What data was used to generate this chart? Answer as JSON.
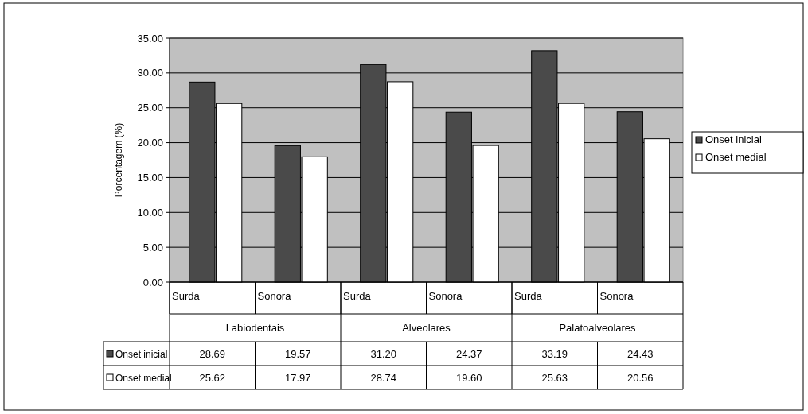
{
  "chart_data": {
    "type": "bar",
    "ylabel": "Porcentagem (%)",
    "categories": [
      "Surda",
      "Sonora",
      "Surda",
      "Sonora",
      "Surda",
      "Sonora"
    ],
    "annotations": [
      "Labiodentais",
      "Alveolares",
      "Palatoalveolares"
    ],
    "series": [
      {
        "name": "Onset inicial",
        "color": "#4a4a4a",
        "values": [
          28.69,
          19.57,
          31.2,
          24.37,
          33.19,
          24.43
        ],
        "value_labels": [
          "28.69",
          "19.57",
          "31.20",
          "24.37",
          "33.19",
          "24.43"
        ]
      },
      {
        "name": "Onset medial",
        "color": "#ffffff",
        "values": [
          25.62,
          17.97,
          28.74,
          19.6,
          25.63,
          20.56
        ],
        "value_labels": [
          "25.62",
          "17.97",
          "28.74",
          "19.60",
          "25.63",
          "20.56"
        ]
      }
    ],
    "ylim": [
      0,
      35
    ],
    "yticks": [
      {
        "value": 0,
        "label": "0.00"
      },
      {
        "value": 5,
        "label": "5.00"
      },
      {
        "value": 10,
        "label": "10.00"
      },
      {
        "value": 15,
        "label": "15.00"
      },
      {
        "value": 20,
        "label": "20.00"
      },
      {
        "value": 25,
        "label": "25.00"
      },
      {
        "value": 30,
        "label": "30.00"
      },
      {
        "value": 35,
        "label": "35.00"
      }
    ],
    "grid": "y",
    "legend": "right"
  }
}
